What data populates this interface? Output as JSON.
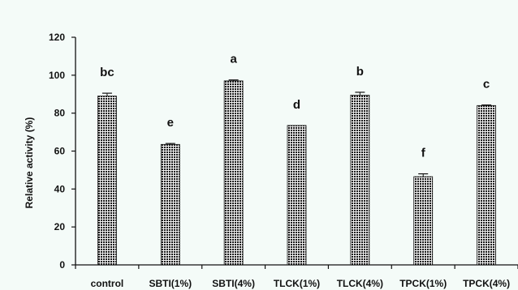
{
  "chart_data": {
    "type": "bar",
    "title": "",
    "xlabel": "",
    "ylabel": "Relative activity (%)",
    "ylim": [
      0,
      120
    ],
    "yticks": [
      0,
      20,
      40,
      60,
      80,
      100,
      120
    ],
    "grid": false,
    "legend": "none",
    "bar_fill": "#333333",
    "bar_pattern": "dotted",
    "categories": [
      "control",
      "SBTI(1%)",
      "SBTI(4%)",
      "TLCK(1%)",
      "TLCK(4%)",
      "TPCK(1%)",
      "TPCK(4%)"
    ],
    "values": [
      89,
      63.5,
      97,
      73.5,
      89.5,
      46.5,
      84
    ],
    "errors": [
      1.5,
      0.5,
      0.5,
      0,
      1.5,
      1.5,
      0.3
    ],
    "significance": [
      "bc",
      "e",
      "a",
      "d",
      "b",
      "f",
      "c"
    ]
  }
}
